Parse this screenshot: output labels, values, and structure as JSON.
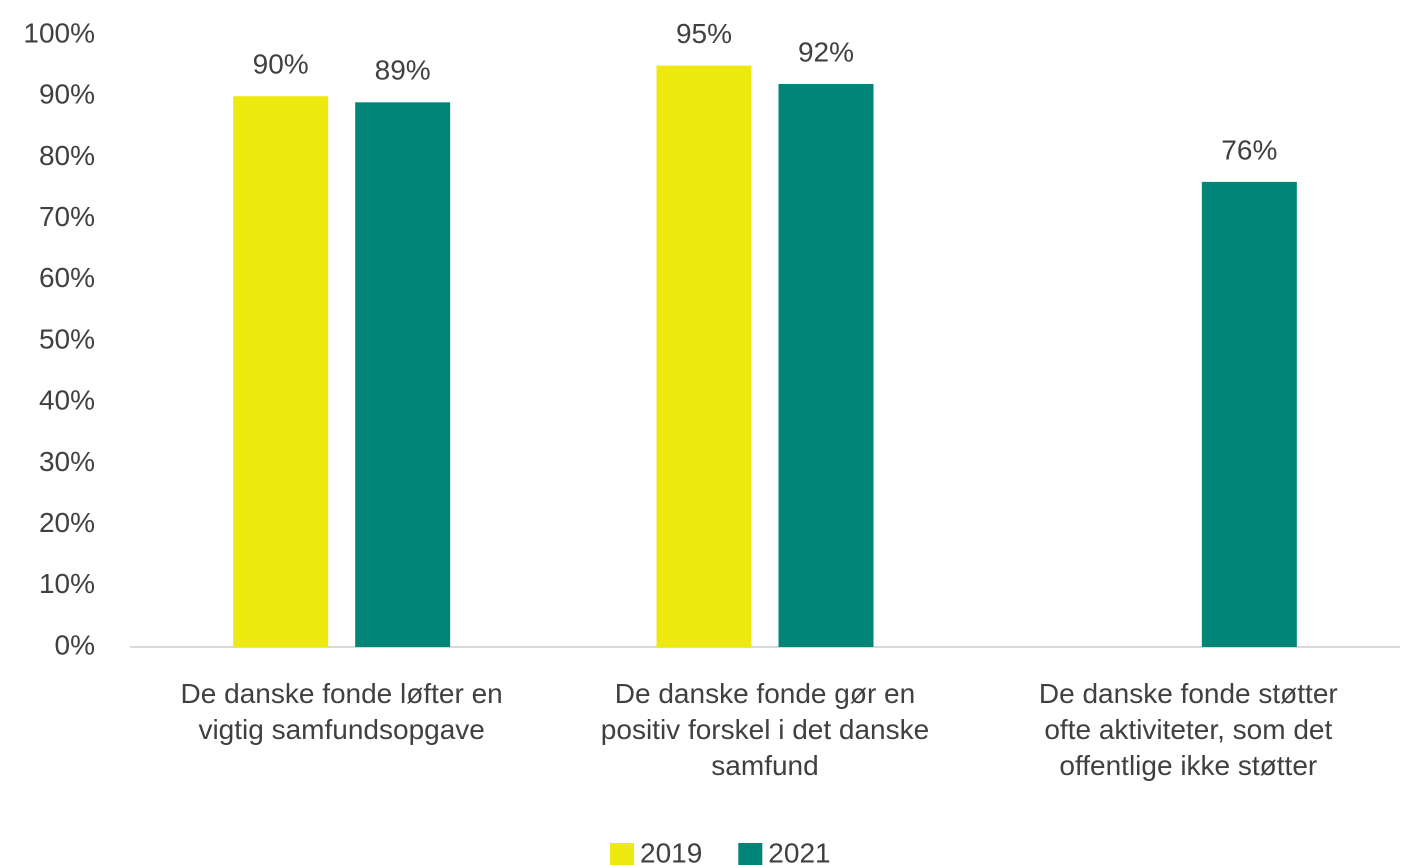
{
  "chart_data": {
    "type": "bar",
    "categories": [
      "De danske fonde løfter en\nvigtig samfundsopgave",
      "De danske fonde gør en\npositiv forskel i det danske\nsamfund",
      "De danske fonde støtter\nofte aktiviteter, som det\noffentlige ikke støtter"
    ],
    "series": [
      {
        "name": "2019",
        "color": "#eeea10",
        "values": [
          90,
          95,
          null
        ],
        "value_labels": [
          "90%",
          "95%",
          null
        ]
      },
      {
        "name": "2021",
        "color": "#008578",
        "values": [
          89,
          92,
          76
        ],
        "value_labels": [
          "89%",
          "92%",
          "76%"
        ]
      }
    ],
    "ylim": [
      0,
      100
    ],
    "yticks": [
      {
        "value": 0,
        "label": "0%"
      },
      {
        "value": 10,
        "label": "10%"
      },
      {
        "value": 20,
        "label": "20%"
      },
      {
        "value": 30,
        "label": "30%"
      },
      {
        "value": 40,
        "label": "40%"
      },
      {
        "value": 50,
        "label": "50%"
      },
      {
        "value": 60,
        "label": "60%"
      },
      {
        "value": 70,
        "label": "70%"
      },
      {
        "value": 80,
        "label": "80%"
      },
      {
        "value": 90,
        "label": "90%"
      },
      {
        "value": 100,
        "label": "100%"
      }
    ],
    "grid": false,
    "legend": "bottom"
  }
}
